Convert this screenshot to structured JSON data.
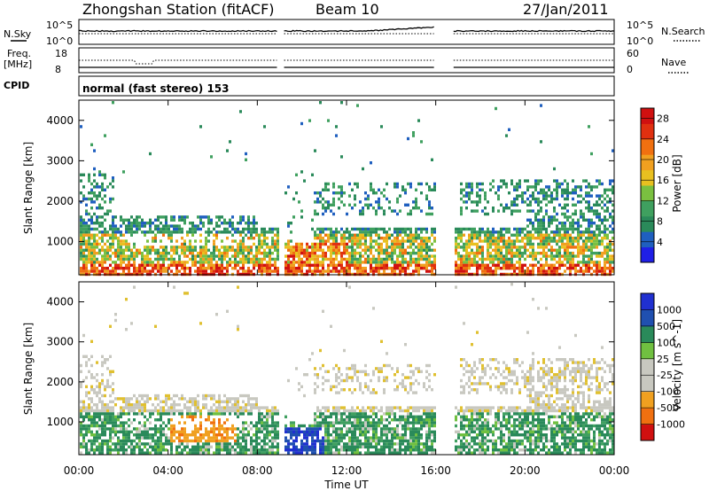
{
  "chart_data": {
    "type": "heatmap",
    "title": "Zhongshan Station (fitACF)",
    "beam": "Beam 10",
    "date": "27/Jan/2011",
    "cpid": "normal (fast stereo) 153",
    "xlabel": "Time UT",
    "x_ticks": [
      "00:00",
      "04:00",
      "08:00",
      "12:00",
      "16:00",
      "20:00",
      "00:00"
    ],
    "xlim_hours": [
      0,
      24
    ],
    "data_gaps_hours": [
      [
        8.9,
        9.2
      ],
      [
        16.0,
        16.75
      ]
    ],
    "top_panel": {
      "labels_left": {
        "nsky": "N.Sky",
        "freq_line1": "Freq.",
        "freq_line2": "[MHz]",
        "cpid_label": "CPID"
      },
      "labels_right": {
        "nsearch": "N.Search",
        "nave": "Nave"
      },
      "noise_axis_left": [
        "10^5",
        "10^0"
      ],
      "noise_axis_right": [
        "10^5",
        "10^0"
      ],
      "freq_axis_left": [
        "18",
        "8"
      ],
      "nave_axis_right": [
        "60",
        "0"
      ]
    },
    "power_panel": {
      "ylabel": "Slant Range [km]",
      "ylim": [
        180,
        4500
      ],
      "y_ticks": [
        "1000",
        "2000",
        "3000",
        "4000"
      ],
      "colorbar_label": "Power [dB]",
      "colorbar_ticks": [
        "4",
        "8",
        "12",
        "16",
        "20",
        "24",
        "28"
      ],
      "colorbar_range": [
        0,
        30
      ],
      "colors": [
        "#1f1fe6",
        "#1f5fbf",
        "#2a8a5a",
        "#3fa05f",
        "#7ac040",
        "#e8c020",
        "#f0a020",
        "#f07010",
        "#e03010",
        "#d01010"
      ]
    },
    "velocity_panel": {
      "ylabel": "Slant Range [km]",
      "ylim": [
        180,
        4500
      ],
      "y_ticks": [
        "1000",
        "2000",
        "3000",
        "4000"
      ],
      "colorbar_label": "Velocity [m s^-1]",
      "colorbar_ticks": [
        "1000",
        "500",
        "100",
        "25",
        "-25",
        "-100",
        "-500",
        "-1000"
      ],
      "colors": [
        "#2030d0",
        "#2050b0",
        "#2a8a5a",
        "#40a060",
        "#70c040",
        "#c8c8c0",
        "#e0c030",
        "#f0a020",
        "#f07010",
        "#e03010",
        "#d01010"
      ]
    }
  }
}
